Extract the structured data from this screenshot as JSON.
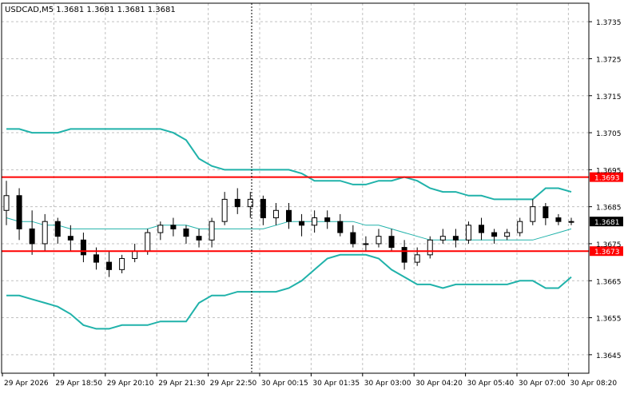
{
  "symbol_header": "USDCAD,M5  1.3681 1.3681 1.3681 1.3681",
  "colors": {
    "background": "#ffffff",
    "frame": "#000000",
    "grid": "#c0c0c0",
    "candle": "#000000",
    "bollinger": "#20b2aa",
    "level_line": "#ff0000",
    "level_label_bg": "#ff0000",
    "level_label_text": "#ffffff",
    "price_label_bg": "#000000",
    "price_label_text": "#ffffff"
  },
  "y_axis": {
    "min": 1.364,
    "max": 1.374,
    "ticks": [
      "1.3735",
      "1.3725",
      "1.3715",
      "1.3705",
      "1.3695",
      "1.3685",
      "1.3675",
      "1.3665",
      "1.3655",
      "1.3645"
    ]
  },
  "x_axis": {
    "ticks": [
      "29 Apr 2026",
      "29 Apr 18:50",
      "29 Apr 20:10",
      "29 Apr 21:30",
      "29 Apr 22:50",
      "30 Apr 00:15",
      "30 Apr 01:35",
      "30 Apr 03:00",
      "30 Apr 04:20",
      "30 Apr 05:40",
      "30 Apr 07:00",
      "30 Apr 08:20"
    ]
  },
  "levels": [
    {
      "label": "1.3693",
      "price": 1.3693
    },
    {
      "label": "1.3673",
      "price": 1.3673
    }
  ],
  "current_price": {
    "label": "1.3681",
    "price": 1.3681
  },
  "chart_data": {
    "type": "candlestick",
    "timeframe": "M5",
    "symbol": "USDCAD",
    "bollinger_upper": [
      1.3706,
      1.3706,
      1.3705,
      1.3705,
      1.3705,
      1.3706,
      1.3706,
      1.3706,
      1.3706,
      1.3706,
      1.3706,
      1.3706,
      1.3706,
      1.3705,
      1.3703,
      1.3698,
      1.3696,
      1.3695,
      1.3695,
      1.3695,
      1.3695,
      1.3695,
      1.3695,
      1.3694,
      1.3692,
      1.3692,
      1.3692,
      1.3691,
      1.3691,
      1.3692,
      1.3692,
      1.3693,
      1.3692,
      1.369,
      1.3689,
      1.3689,
      1.3688,
      1.3688,
      1.3687,
      1.3687,
      1.3687,
      1.3687,
      1.369,
      1.369,
      1.3689
    ],
    "bollinger_middle": [
      1.3682,
      1.3681,
      1.3681,
      1.368,
      1.368,
      1.3679,
      1.3679,
      1.3679,
      1.3679,
      1.3679,
      1.3679,
      1.3679,
      1.368,
      1.368,
      1.368,
      1.3679,
      1.3679,
      1.3679,
      1.3679,
      1.3679,
      1.3679,
      1.368,
      1.3681,
      1.3681,
      1.3681,
      1.3681,
      1.3681,
      1.3681,
      1.368,
      1.368,
      1.3679,
      1.3678,
      1.3677,
      1.3676,
      1.3676,
      1.3676,
      1.3676,
      1.3676,
      1.3676,
      1.3676,
      1.3676,
      1.3676,
      1.3677,
      1.3678,
      1.3679
    ],
    "bollinger_lower": [
      1.3661,
      1.3661,
      1.366,
      1.3659,
      1.3658,
      1.3656,
      1.3653,
      1.3652,
      1.3652,
      1.3653,
      1.3653,
      1.3653,
      1.3654,
      1.3654,
      1.3654,
      1.3659,
      1.3661,
      1.3661,
      1.3662,
      1.3662,
      1.3662,
      1.3662,
      1.3663,
      1.3665,
      1.3668,
      1.3671,
      1.3672,
      1.3672,
      1.3672,
      1.3671,
      1.3668,
      1.3666,
      1.3664,
      1.3664,
      1.3663,
      1.3664,
      1.3664,
      1.3664,
      1.3664,
      1.3664,
      1.3665,
      1.3665,
      1.3663,
      1.3663,
      1.3666
    ],
    "candles": [
      [
        1.3684,
        1.3692,
        1.368,
        1.3688
      ],
      [
        1.3688,
        1.369,
        1.3676,
        1.3679
      ],
      [
        1.3679,
        1.3684,
        1.3672,
        1.3675
      ],
      [
        1.3675,
        1.3683,
        1.3673,
        1.3681
      ],
      [
        1.3681,
        1.3682,
        1.3675,
        1.3677
      ],
      [
        1.3677,
        1.368,
        1.3673,
        1.3676
      ],
      [
        1.3676,
        1.3678,
        1.367,
        1.3672
      ],
      [
        1.3672,
        1.3674,
        1.3668,
        1.367
      ],
      [
        1.367,
        1.3673,
        1.3666,
        1.3668
      ],
      [
        1.3668,
        1.3672,
        1.3667,
        1.3671
      ],
      [
        1.3671,
        1.3675,
        1.367,
        1.3673
      ],
      [
        1.3673,
        1.3679,
        1.3672,
        1.3678
      ],
      [
        1.3678,
        1.3681,
        1.3676,
        1.368
      ],
      [
        1.368,
        1.3682,
        1.3677,
        1.3679
      ],
      [
        1.3679,
        1.368,
        1.3675,
        1.3677
      ],
      [
        1.3677,
        1.3679,
        1.3674,
        1.3676
      ],
      [
        1.3676,
        1.3682,
        1.3674,
        1.3681
      ],
      [
        1.3681,
        1.3689,
        1.368,
        1.3687
      ],
      [
        1.3687,
        1.369,
        1.3683,
        1.3685
      ],
      [
        1.3685,
        1.3689,
        1.3682,
        1.3687
      ],
      [
        1.3687,
        1.3688,
        1.368,
        1.3682
      ],
      [
        1.3682,
        1.3686,
        1.368,
        1.3684
      ],
      [
        1.3684,
        1.3686,
        1.3679,
        1.3681
      ],
      [
        1.3681,
        1.3683,
        1.3677,
        1.368
      ],
      [
        1.368,
        1.3684,
        1.3678,
        1.3682
      ],
      [
        1.3682,
        1.3684,
        1.3679,
        1.3681
      ],
      [
        1.3681,
        1.3683,
        1.3677,
        1.3678
      ],
      [
        1.3678,
        1.368,
        1.3674,
        1.3675
      ],
      [
        1.3675,
        1.3677,
        1.3673,
        1.3675
      ],
      [
        1.3675,
        1.3679,
        1.3674,
        1.3677
      ],
      [
        1.3677,
        1.3679,
        1.3673,
        1.3674
      ],
      [
        1.3674,
        1.3676,
        1.3668,
        1.367
      ],
      [
        1.367,
        1.3674,
        1.3669,
        1.3672
      ],
      [
        1.3672,
        1.3677,
        1.3671,
        1.3676
      ],
      [
        1.3676,
        1.3679,
        1.3675,
        1.3677
      ],
      [
        1.3677,
        1.3679,
        1.3674,
        1.3676
      ],
      [
        1.3676,
        1.3681,
        1.3675,
        1.368
      ],
      [
        1.368,
        1.3682,
        1.3676,
        1.3678
      ],
      [
        1.3678,
        1.3679,
        1.3675,
        1.3677
      ],
      [
        1.3677,
        1.3679,
        1.3676,
        1.3678
      ],
      [
        1.3678,
        1.3682,
        1.3677,
        1.3681
      ],
      [
        1.3681,
        1.3687,
        1.368,
        1.3685
      ],
      [
        1.3685,
        1.3686,
        1.368,
        1.3682
      ],
      [
        1.3682,
        1.3683,
        1.368,
        1.3681
      ],
      [
        1.3681,
        1.3682,
        1.368,
        1.3681
      ]
    ]
  }
}
